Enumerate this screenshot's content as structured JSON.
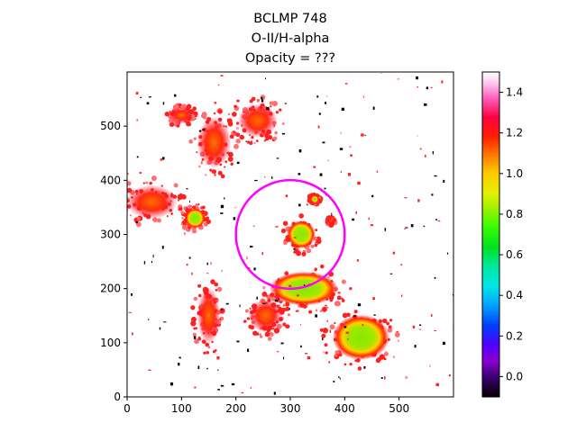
{
  "chart_data": {
    "type": "heatmap",
    "title_lines": [
      "BCLMP 748",
      "O-II/H-alpha",
      "Opacity = ???"
    ],
    "xlim": [
      0,
      600
    ],
    "ylim": [
      0,
      600
    ],
    "x_ticks": [
      0,
      100,
      200,
      300,
      400,
      500
    ],
    "y_ticks": [
      0,
      100,
      200,
      300,
      400,
      500
    ],
    "colorbar": {
      "colormap": "gist_ncar-like (black→purple→blue→cyan→green→yellow→orange→red→pink→white)",
      "range": [
        -0.1,
        1.5
      ],
      "ticks": [
        1.4,
        1.2,
        1.0,
        0.8,
        0.6,
        0.4,
        0.2,
        0.0
      ],
      "tick_labels": [
        "1.4",
        "1.2",
        "1.0",
        "0.8",
        "0.6",
        "0.4",
        "0.2",
        "0.0"
      ]
    },
    "aperture_circle": {
      "center": [
        300,
        300
      ],
      "radius": 100,
      "color": "#ff00ff"
    },
    "blobs": [
      {
        "x": 325,
        "y": 200,
        "rx": 60,
        "ry": 30,
        "level": 0.55
      },
      {
        "x": 320,
        "y": 300,
        "rx": 25,
        "ry": 25,
        "level": 0.55
      },
      {
        "x": 430,
        "y": 110,
        "rx": 50,
        "ry": 40,
        "level": 0.6
      },
      {
        "x": 45,
        "y": 360,
        "rx": 45,
        "ry": 30,
        "level": 0.9
      },
      {
        "x": 125,
        "y": 330,
        "rx": 18,
        "ry": 18,
        "level": 0.65
      },
      {
        "x": 160,
        "y": 470,
        "rx": 30,
        "ry": 45,
        "level": 1.0
      },
      {
        "x": 240,
        "y": 510,
        "rx": 35,
        "ry": 30,
        "level": 1.1
      },
      {
        "x": 100,
        "y": 520,
        "rx": 20,
        "ry": 15,
        "level": 1.1
      },
      {
        "x": 150,
        "y": 150,
        "rx": 20,
        "ry": 50,
        "level": 1.1
      },
      {
        "x": 255,
        "y": 150,
        "rx": 30,
        "ry": 30,
        "level": 1.15
      },
      {
        "x": 345,
        "y": 365,
        "rx": 7,
        "ry": 7,
        "level": 0.75
      },
      {
        "x": 375,
        "y": 325,
        "rx": 5,
        "ry": 5,
        "level": 0.9
      }
    ]
  }
}
